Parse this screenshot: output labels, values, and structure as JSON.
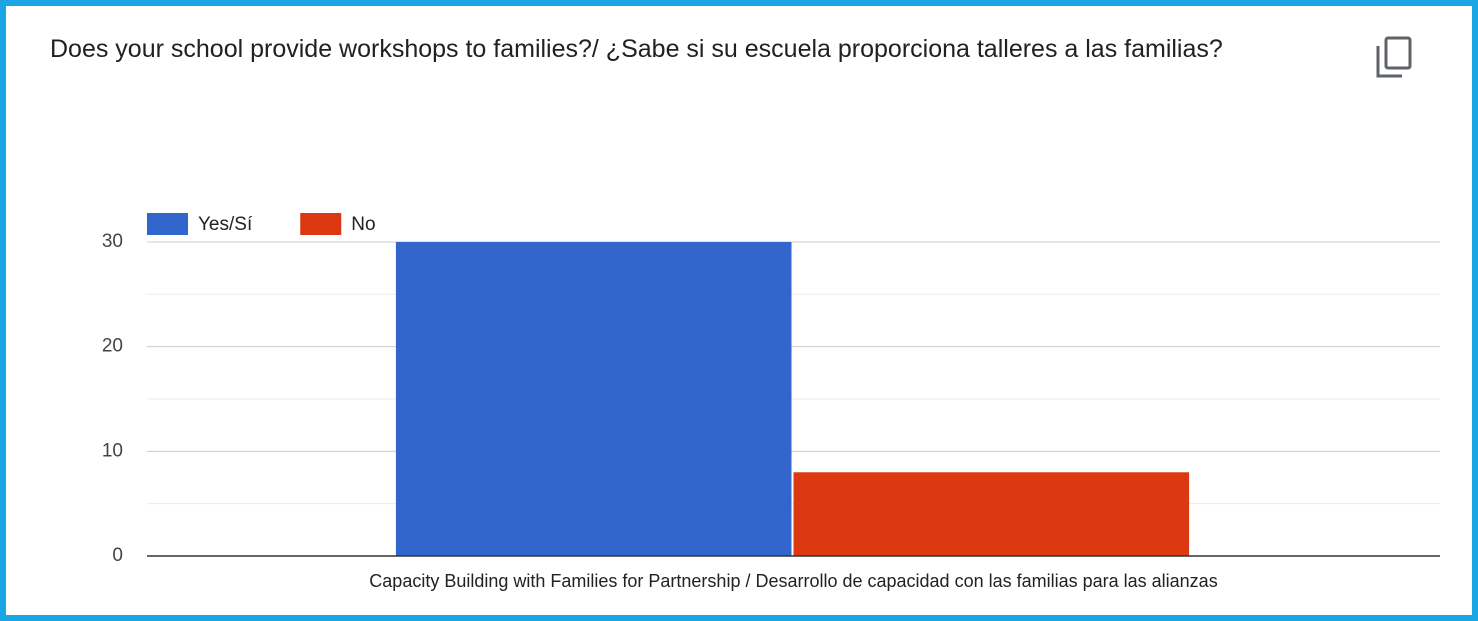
{
  "chart_data": {
    "type": "bar",
    "title": "Does your school provide workshops to families?/ ¿Sabe si su escuela proporciona talleres a las familias?",
    "categories": [
      "Capacity Building with Families for Partnership / Desarrollo de capacidad con las familias para las alianzas"
    ],
    "series": [
      {
        "name": "Yes/Sí",
        "color": "#3366cc",
        "values": [
          30
        ]
      },
      {
        "name": "No",
        "color": "#dc3912",
        "values": [
          8
        ]
      }
    ],
    "ylim": [
      0,
      30
    ],
    "yticks": [
      0,
      10,
      20,
      30
    ],
    "minor_yticks": [
      5,
      15,
      25
    ],
    "grid": true,
    "legend": "top-left"
  }
}
